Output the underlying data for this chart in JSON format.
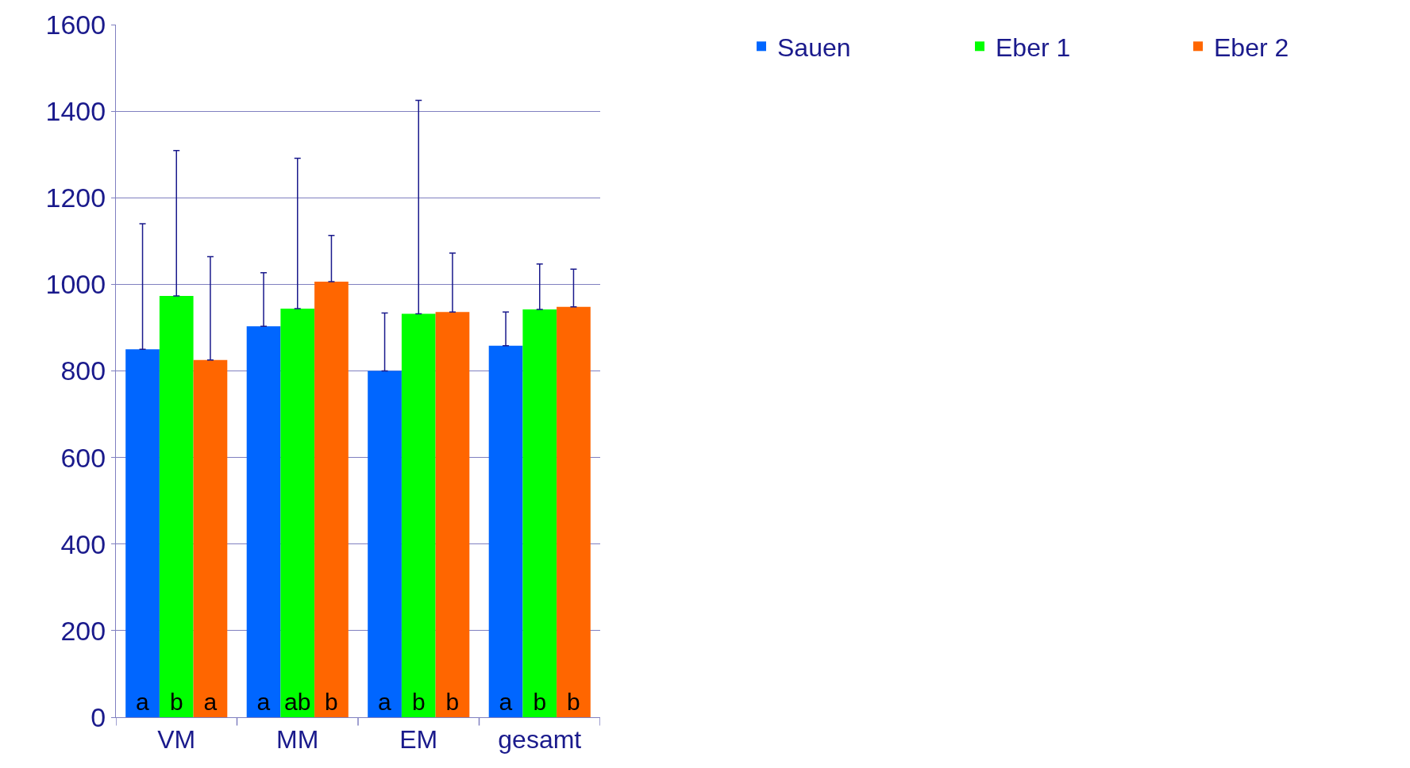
{
  "chart_data": {
    "type": "bar",
    "categories": [
      "VM",
      "MM",
      "EM",
      "gesamt"
    ],
    "series": [
      {
        "name": "Sauen",
        "color": "#0066ff",
        "values": [
          850,
          903,
          800,
          858
        ],
        "errors": [
          [
            850,
            1140
          ],
          [
            903,
            1027
          ],
          [
            800,
            934
          ],
          [
            858,
            936
          ]
        ],
        "value_labels": [
          "a",
          "a",
          "a",
          "a"
        ]
      },
      {
        "name": "Eber 1",
        "color": "#00ff00",
        "values": [
          973,
          944,
          932,
          942
        ],
        "errors": [
          [
            973,
            1309
          ],
          [
            944,
            1291
          ],
          [
            932,
            1425
          ],
          [
            942,
            1047
          ]
        ],
        "value_labels": [
          "b",
          "ab",
          "b",
          "b"
        ]
      },
      {
        "name": "Eber 2",
        "color": "#ff6600",
        "values": [
          825,
          1006,
          936,
          948
        ],
        "errors": [
          [
            825,
            1064
          ],
          [
            1006,
            1113
          ],
          [
            936,
            1072
          ],
          [
            948,
            1035
          ]
        ],
        "value_labels": [
          "a",
          "b",
          "b",
          "b"
        ]
      }
    ],
    "ylim": [
      0,
      1600
    ],
    "yticks": [
      0,
      200,
      400,
      600,
      800,
      1000,
      1200,
      1400,
      1600
    ],
    "grid": "y",
    "legend": "top right"
  }
}
